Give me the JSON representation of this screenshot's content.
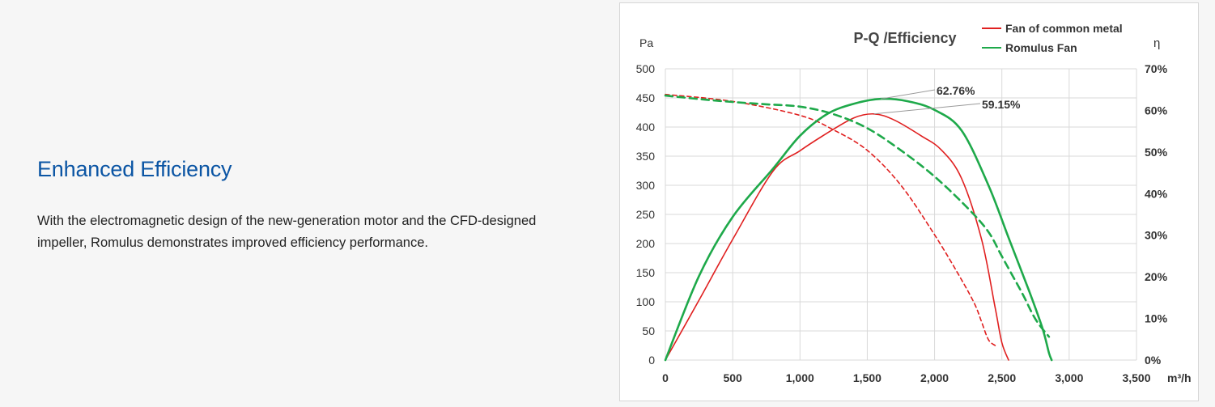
{
  "section": {
    "heading": "Enhanced Efficiency",
    "description": "With the electromagnetic design of the new-generation motor and the CFD-designed impeller, Romulus demonstrates improved efficiency performance."
  },
  "chart_data": {
    "type": "line",
    "title": "P-Q /Efficiency",
    "xlabel": "m³/h",
    "ylabel": "Pa",
    "y2label": "η",
    "xlim": [
      0,
      3500
    ],
    "ylim": [
      0,
      500
    ],
    "y2lim": [
      0,
      70
    ],
    "xticks": [
      "0",
      "500",
      "1,000",
      "1,500",
      "2,000",
      "2,500",
      "3,000",
      "3,500"
    ],
    "yticks": [
      "0",
      "50",
      "100",
      "150",
      "200",
      "250",
      "300",
      "350",
      "400",
      "450",
      "500"
    ],
    "y2ticks": [
      "0%",
      "10%",
      "20%",
      "30%",
      "40%",
      "50%",
      "60%",
      "70%"
    ],
    "grid": true,
    "legend_position": "top-right",
    "legend": [
      {
        "name": "Fan of common metal",
        "color": "#e02020"
      },
      {
        "name": "Romulus Fan",
        "color": "#1ea94a"
      }
    ],
    "annotations": [
      {
        "text": "62.76%",
        "x": 1600,
        "y2": 62.76,
        "series": "Romulus Fan"
      },
      {
        "text": "59.15%",
        "x": 1550,
        "y2": 59.15,
        "series": "Fan of common metal"
      }
    ],
    "series": [
      {
        "name": "Fan of common metal",
        "kind": "pressure",
        "axis": "left",
        "style": "dashed",
        "color": "#e02020",
        "x": [
          0,
          500,
          1000,
          1250,
          1500,
          1750,
          2000,
          2200,
          2300,
          2350,
          2400,
          2450
        ],
        "y": [
          456,
          444,
          420,
          395,
          360,
          300,
          215,
          138,
          95,
          65,
          35,
          25
        ]
      },
      {
        "name": "Fan of common metal",
        "kind": "efficiency",
        "axis": "right",
        "style": "solid",
        "color": "#e02020",
        "x": [
          0,
          250,
          500,
          800,
          1000,
          1200,
          1400,
          1550,
          1700,
          1900,
          2050,
          2200,
          2350,
          2450,
          2500,
          2550
        ],
        "y": [
          0,
          14.4,
          29,
          45.4,
          50.3,
          54.5,
          58.2,
          59.15,
          57.7,
          53.9,
          50.5,
          43.7,
          28.9,
          12.6,
          4.2,
          0
        ]
      },
      {
        "name": "Romulus Fan",
        "kind": "pressure",
        "axis": "left",
        "style": "dashed",
        "color": "#1ea94a",
        "x": [
          0,
          250,
          500,
          750,
          1000,
          1250,
          1500,
          1750,
          2000,
          2250,
          2400,
          2500,
          2650,
          2750,
          2850
        ],
        "y": [
          454,
          448,
          443,
          439,
          435,
          422,
          398,
          360,
          315,
          260,
          220,
          178,
          115,
          70,
          40
        ]
      },
      {
        "name": "Romulus Fan",
        "kind": "efficiency",
        "axis": "right",
        "style": "solid",
        "color": "#1ea94a",
        "x": [
          0,
          250,
          500,
          800,
          1000,
          1200,
          1400,
          1600,
          1800,
          2000,
          2200,
          2400,
          2550,
          2700,
          2800,
          2850,
          2870
        ],
        "y": [
          0,
          20.2,
          34.4,
          46,
          53.9,
          59.1,
          61.6,
          62.76,
          62.2,
          60.1,
          55.2,
          42,
          29.4,
          16.8,
          7.8,
          1.7,
          0
        ]
      }
    ]
  }
}
